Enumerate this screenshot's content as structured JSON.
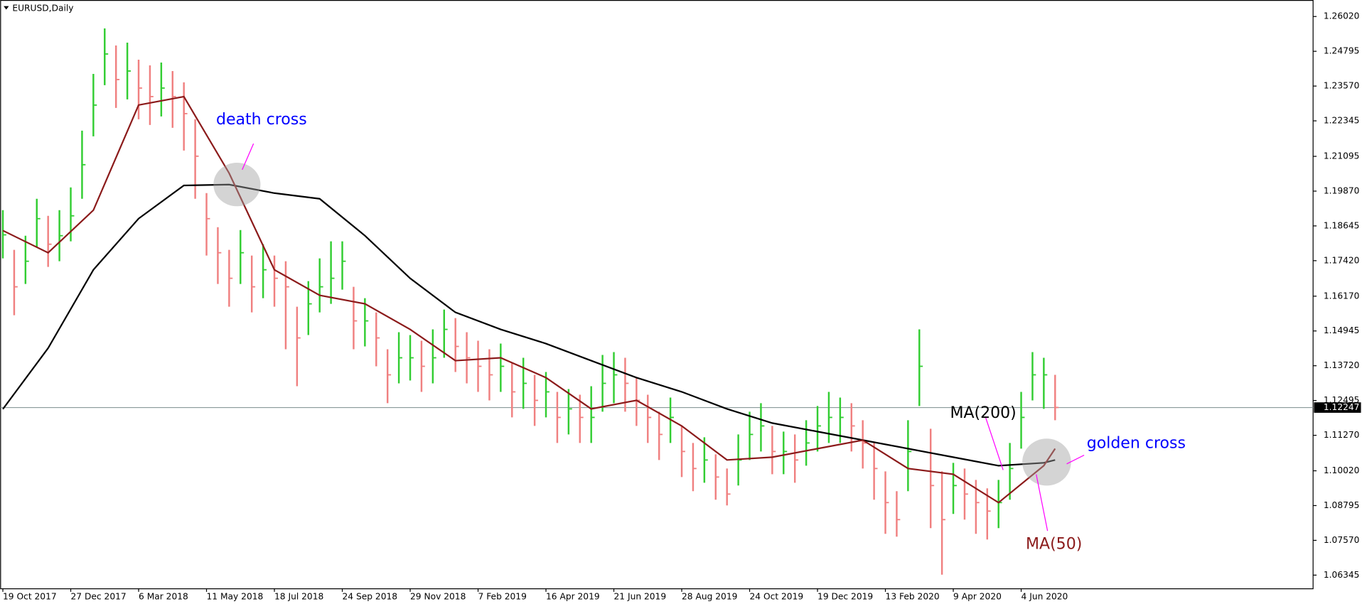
{
  "chart_data": {
    "type": "ohlc",
    "title": "EURUSD,Daily",
    "xlim": [
      -0.2,
      115.8
    ],
    "xticks": [
      {
        "value": 0,
        "label": "19 Oct 2017"
      },
      {
        "value": 6,
        "label": "27 Dec 2017"
      },
      {
        "value": 12,
        "label": "6 Mar 2018"
      },
      {
        "value": 18,
        "label": "11 May 2018"
      },
      {
        "value": 24,
        "label": "18 Jul 2018"
      },
      {
        "value": 30,
        "label": "24 Sep 2018"
      },
      {
        "value": 36,
        "label": "29 Nov 2018"
      },
      {
        "value": 42,
        "label": "7 Feb 2019"
      },
      {
        "value": 48,
        "label": "16 Apr 2019"
      },
      {
        "value": 54,
        "label": "21 Jun 2019"
      },
      {
        "value": 60,
        "label": "28 Aug 2019"
      },
      {
        "value": 66,
        "label": "24 Oct 2019"
      },
      {
        "value": 72,
        "label": "19 Dec 2019"
      },
      {
        "value": 78,
        "label": "13 Feb 2020"
      },
      {
        "value": 84,
        "label": "9 Apr 2020"
      },
      {
        "value": 90,
        "label": "4 Jun 2020"
      }
    ],
    "ylim": [
      1.0588,
      1.2654
    ],
    "yticks": [
      {
        "value": 1.2602,
        "label": "1.26020"
      },
      1.24795,
      {
        "value": 1.2357,
        "label": "1.23570"
      },
      1.22345,
      1.21095,
      {
        "value": 1.1987,
        "label": "1.19870"
      },
      1.18645,
      {
        "value": 1.1742,
        "label": "1.17420"
      },
      {
        "value": 1.1617,
        "label": "1.16170"
      },
      1.14945,
      {
        "value": 1.1372,
        "label": "1.13720"
      },
      1.12495,
      {
        "value": 1.1127,
        "label": "1.11270"
      },
      {
        "value": 1.1002,
        "label": "1.10020"
      },
      1.08795,
      {
        "value": 1.0757,
        "label": "1.07570"
      },
      1.06345
    ],
    "grid": false,
    "up_color": "#32cd32",
    "down_color": "#f08080",
    "high": [
      1.192,
      1.178,
      1.183,
      1.196,
      1.19,
      1.192,
      1.2,
      1.22,
      1.24,
      1.256,
      1.25,
      1.251,
      1.245,
      1.243,
      1.244,
      1.241,
      1.237,
      1.224,
      1.198,
      1.186,
      1.178,
      1.185,
      1.176,
      1.18,
      1.176,
      1.174,
      1.158,
      1.167,
      1.175,
      1.181,
      1.181,
      1.165,
      1.161,
      1.156,
      1.143,
      1.149,
      1.148,
      1.146,
      1.15,
      1.157,
      1.154,
      1.149,
      1.146,
      1.143,
      1.145,
      1.138,
      1.14,
      1.134,
      1.135,
      1.128,
      1.129,
      1.127,
      1.13,
      1.141,
      1.142,
      1.14,
      1.133,
      1.127,
      1.121,
      1.126,
      1.116,
      1.11,
      1.112,
      1.106,
      1.101,
      1.113,
      1.121,
      1.124,
      1.116,
      1.114,
      1.113,
      1.118,
      1.123,
      1.128,
      1.126,
      1.124,
      1.118,
      1.11,
      1.1,
      1.093,
      1.118,
      1.15,
      1.115,
      1.1,
      1.103,
      1.101,
      1.097,
      1.094,
      1.097,
      1.11,
      1.128,
      1.142,
      1.14,
      1.134
    ],
    "low": [
      1.175,
      1.155,
      1.166,
      1.179,
      1.172,
      1.174,
      1.181,
      1.196,
      1.218,
      1.236,
      1.228,
      1.231,
      1.224,
      1.222,
      1.225,
      1.221,
      1.213,
      1.196,
      1.176,
      1.166,
      1.158,
      1.166,
      1.156,
      1.161,
      1.158,
      1.143,
      1.13,
      1.148,
      1.156,
      1.159,
      1.164,
      1.143,
      1.144,
      1.137,
      1.124,
      1.131,
      1.132,
      1.128,
      1.131,
      1.14,
      1.135,
      1.131,
      1.128,
      1.125,
      1.128,
      1.119,
      1.122,
      1.116,
      1.119,
      1.11,
      1.113,
      1.11,
      1.11,
      1.121,
      1.124,
      1.121,
      1.116,
      1.11,
      1.104,
      1.11,
      1.098,
      1.093,
      1.096,
      1.09,
      1.088,
      1.095,
      1.104,
      1.107,
      1.099,
      1.099,
      1.096,
      1.102,
      1.107,
      1.11,
      1.11,
      1.107,
      1.101,
      1.09,
      1.078,
      1.077,
      1.093,
      1.123,
      1.08,
      1.0636,
      1.085,
      1.083,
      1.078,
      1.076,
      1.08,
      1.09,
      1.108,
      1.125,
      1.122,
      1.118
    ],
    "close": [
      1.1833,
      1.165,
      1.174,
      1.189,
      1.18,
      1.183,
      1.19,
      1.208,
      1.229,
      1.247,
      1.238,
      1.241,
      1.235,
      1.232,
      1.235,
      1.232,
      1.226,
      1.211,
      1.189,
      1.177,
      1.168,
      1.177,
      1.165,
      1.171,
      1.168,
      1.165,
      1.147,
      1.159,
      1.165,
      1.168,
      1.174,
      1.153,
      1.153,
      1.147,
      1.134,
      1.14,
      1.14,
      1.137,
      1.14,
      1.15,
      1.144,
      1.14,
      1.137,
      1.134,
      1.137,
      1.128,
      1.131,
      1.125,
      1.128,
      1.119,
      1.122,
      1.119,
      1.119,
      1.131,
      1.134,
      1.131,
      1.125,
      1.119,
      1.113,
      1.119,
      1.107,
      1.101,
      1.104,
      1.098,
      1.092,
      1.104,
      1.113,
      1.116,
      1.107,
      1.107,
      1.104,
      1.11,
      1.116,
      1.119,
      1.119,
      1.116,
      1.11,
      1.101,
      1.089,
      1.083,
      1.107,
      1.137,
      1.095,
      1.083,
      1.095,
      1.092,
      1.089,
      1.086,
      1.089,
      1.101,
      1.119,
      1.134,
      1.134,
      1.1225
    ],
    "lines": [
      {
        "name": "MA(200)",
        "color": "#000000",
        "x": [
          0,
          4,
          8,
          12,
          16,
          20,
          24,
          28,
          32,
          36,
          40,
          44,
          48,
          52,
          56,
          60,
          64,
          68,
          72,
          76,
          80,
          84,
          88,
          92,
          93
        ],
        "values": [
          1.1219,
          1.1434,
          1.171,
          1.189,
          1.2007,
          1.201,
          1.198,
          1.196,
          1.183,
          1.168,
          1.156,
          1.15,
          1.145,
          1.139,
          1.133,
          1.128,
          1.122,
          1.117,
          1.114,
          1.111,
          1.108,
          1.105,
          1.102,
          1.103,
          1.104
        ]
      },
      {
        "name": "MA(50)",
        "color": "#8b1a1a",
        "x": [
          0,
          4,
          8,
          12,
          16,
          20,
          24,
          28,
          32,
          36,
          40,
          44,
          48,
          52,
          56,
          60,
          64,
          68,
          72,
          76,
          80,
          84,
          88,
          92,
          93
        ],
        "values": [
          1.1848,
          1.177,
          1.192,
          1.229,
          1.232,
          1.205,
          1.171,
          1.162,
          1.159,
          1.15,
          1.139,
          1.14,
          1.133,
          1.122,
          1.125,
          1.116,
          1.104,
          1.105,
          1.108,
          1.111,
          1.101,
          1.099,
          1.089,
          1.102,
          1.108
        ]
      }
    ],
    "last_price": 1.12247,
    "annotations": [
      {
        "text": "death cross",
        "color": "#0000ff"
      },
      {
        "text": "golden cross",
        "color": "#0000ff"
      }
    ]
  }
}
